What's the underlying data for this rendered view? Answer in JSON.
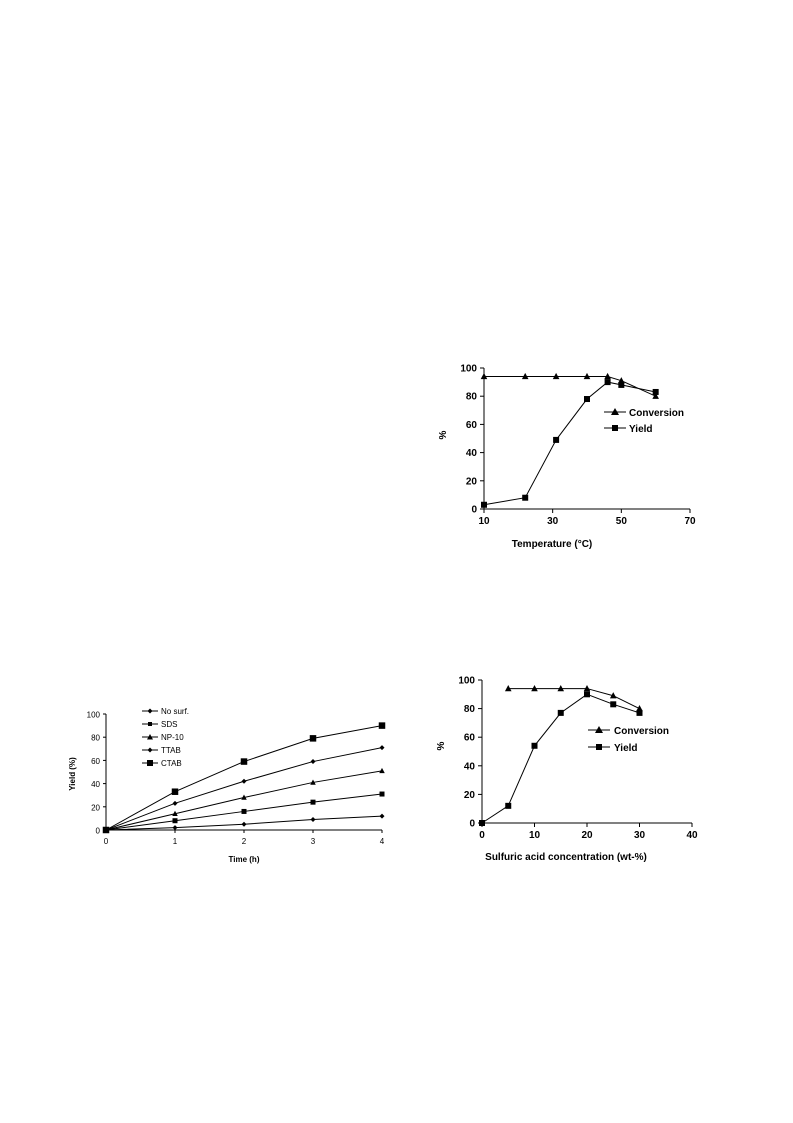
{
  "chart_data": [
    {
      "id": "temperature",
      "type": "line",
      "title": "",
      "xlabel": "Temperature (°C)",
      "ylabel": "%",
      "xlim": [
        10,
        70
      ],
      "ylim": [
        0,
        100
      ],
      "xticks": [
        10,
        30,
        50,
        70
      ],
      "yticks": [
        0,
        20,
        40,
        60,
        80,
        100
      ],
      "grid": false,
      "legend_position": "center-right",
      "series": [
        {
          "name": "Conversion",
          "marker": "triangle",
          "x": [
            10,
            22,
            31,
            40,
            46,
            50,
            60
          ],
          "y": [
            94,
            94,
            94,
            94,
            94,
            91,
            80
          ]
        },
        {
          "name": "Yield",
          "marker": "square",
          "x": [
            10,
            22,
            31,
            40,
            46,
            50,
            60
          ],
          "y": [
            3,
            8,
            49,
            78,
            90,
            88,
            83
          ]
        }
      ]
    },
    {
      "id": "time",
      "type": "line",
      "title": "",
      "xlabel": "Time (h)",
      "ylabel": "Yield (%)",
      "xlim": [
        0,
        4
      ],
      "ylim": [
        0,
        100
      ],
      "xticks": [
        0,
        1,
        2,
        3,
        4
      ],
      "yticks": [
        0,
        20,
        40,
        60,
        80,
        100
      ],
      "grid": false,
      "legend_position": "top-left",
      "series": [
        {
          "name": "No surf.",
          "marker": "diamond",
          "x": [
            0,
            1,
            2,
            3,
            4
          ],
          "y": [
            0,
            2,
            5,
            9,
            12
          ]
        },
        {
          "name": "SDS",
          "marker": "square",
          "x": [
            0,
            1,
            2,
            3,
            4
          ],
          "y": [
            0,
            8,
            16,
            24,
            31
          ]
        },
        {
          "name": "NP-10",
          "marker": "triangle",
          "x": [
            0,
            1,
            2,
            3,
            4
          ],
          "y": [
            0,
            14,
            28,
            41,
            51
          ]
        },
        {
          "name": "TTAB",
          "marker": "diamond",
          "x": [
            0,
            1,
            2,
            3,
            4
          ],
          "y": [
            0,
            23,
            42,
            59,
            71
          ]
        },
        {
          "name": "CTAB",
          "marker": "square-large",
          "x": [
            0,
            1,
            2,
            3,
            4
          ],
          "y": [
            0,
            33,
            59,
            79,
            90
          ]
        }
      ]
    },
    {
      "id": "acid",
      "type": "line",
      "title": "",
      "xlabel": "Sulfuric acid concentration (wt-%)",
      "ylabel": "%",
      "xlim": [
        0,
        40
      ],
      "ylim": [
        0,
        100
      ],
      "xticks": [
        0,
        10,
        20,
        30,
        40
      ],
      "yticks": [
        0,
        20,
        40,
        60,
        80,
        100
      ],
      "grid": false,
      "legend_position": "center-right",
      "series": [
        {
          "name": "Conversion",
          "marker": "triangle",
          "x": [
            5,
            10,
            15,
            20,
            25,
            30
          ],
          "y": [
            94,
            94,
            94,
            94,
            89,
            80
          ]
        },
        {
          "name": "Yield",
          "marker": "square",
          "x": [
            0,
            5,
            10,
            15,
            20,
            25,
            30
          ],
          "y": [
            0,
            12,
            54,
            77,
            90,
            83,
            77
          ]
        }
      ]
    }
  ]
}
